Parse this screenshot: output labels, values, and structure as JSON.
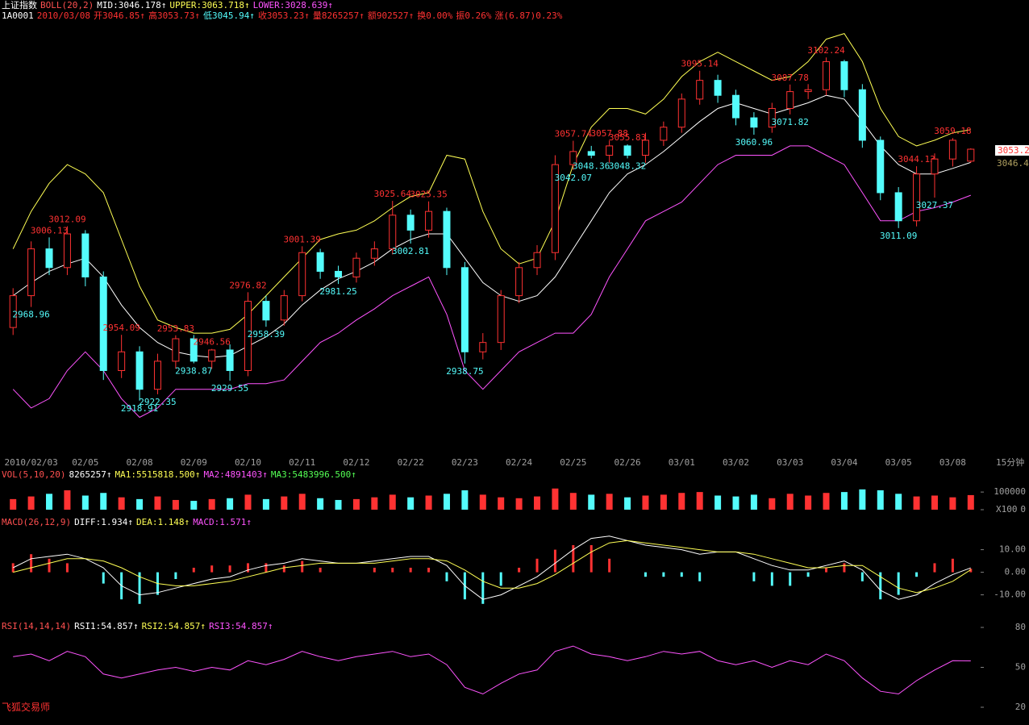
{
  "header": {
    "line1": [
      {
        "text": "上证指数",
        "color": "#ffffff"
      },
      {
        "text": "BOLL(20,2)",
        "color": "#ff5050"
      },
      {
        "text": "MID:3046.178↑",
        "color": "#ffffff"
      },
      {
        "text": "UPPER:3063.718↑",
        "color": "#ffff54"
      },
      {
        "text": "LOWER:3028.639↑",
        "color": "#ff54ff"
      }
    ],
    "line2": [
      {
        "text": "1A0001",
        "color": "#ffffff"
      },
      {
        "text": "2010/03/08",
        "color": "#ff3232"
      },
      {
        "text": "开3046.85↑",
        "color": "#ff3232"
      },
      {
        "text": "高3053.73↑",
        "color": "#ff3232"
      },
      {
        "text": "低3045.94↑",
        "color": "#54fcfc"
      },
      {
        "text": "收3053.23↑",
        "color": "#ff3232"
      },
      {
        "text": "量8265257↑",
        "color": "#ff3232"
      },
      {
        "text": "额902527↑",
        "color": "#ff3232"
      },
      {
        "text": "换0.00%",
        "color": "#ff3232"
      },
      {
        "text": "振0.26%",
        "color": "#ff3232"
      },
      {
        "text": "涨(6.87)0.23%",
        "color": "#ff3232"
      }
    ]
  },
  "chart_data": [
    {
      "type": "candlestick",
      "period": "15分钟",
      "last_price": "3053.2",
      "mid_price": "3046.4",
      "up_color": "#ff3232",
      "down_color": "#54fcfc",
      "ylim": [
        2893,
        3120
      ],
      "categories": [
        null,
        "2010/02/03",
        null,
        null,
        "02/05",
        null,
        null,
        "02/08",
        null,
        null,
        "02/09",
        null,
        null,
        "02/10",
        null,
        null,
        "02/11",
        null,
        null,
        "02/12",
        null,
        null,
        "02/22",
        null,
        null,
        "02/23",
        null,
        null,
        "02/24",
        null,
        null,
        "02/25",
        null,
        null,
        "02/26",
        null,
        null,
        "03/01",
        null,
        null,
        "03/02",
        null,
        null,
        "03/03",
        null,
        null,
        "03/04",
        null,
        null,
        "03/05",
        null,
        null,
        "03/08",
        null
      ],
      "open": [
        2958,
        2975,
        3000,
        2990,
        3008,
        2985,
        2935,
        2945,
        2925,
        2940,
        2952,
        2940,
        2946,
        2935,
        2972,
        2962,
        2975,
        2998,
        2988,
        2985,
        2995,
        3000,
        3018,
        3010,
        3020,
        2990,
        2945,
        2950,
        2975,
        2990,
        2998,
        3045,
        3052,
        3050,
        3055,
        3050,
        3058,
        3065,
        3080,
        3090,
        3082,
        3070,
        3065,
        3075,
        3084,
        3085,
        3100,
        3085,
        3058,
        3030,
        3015,
        3040,
        3048,
        3046.85
      ],
      "high": [
        2979,
        3004,
        3006.13,
        3012.09,
        3010,
        2988,
        2954.09,
        2948,
        2944,
        2953.83,
        2954,
        2946.56,
        2949,
        2976.82,
        2975,
        2978,
        3001.39,
        3000,
        2991,
        2998,
        3004,
        3025.64,
        3021,
        3025.35,
        3022,
        2993,
        2955,
        2978,
        2993,
        3002,
        3050,
        3057.74,
        3055,
        3057.88,
        3055.83,
        3062,
        3068,
        3083,
        3095.14,
        3093,
        3085,
        3073,
        3078,
        3087.78,
        3088,
        3102.24,
        3101,
        3088,
        3060,
        3033,
        3044.13,
        3051,
        3059.18,
        3053.73
      ],
      "low": [
        2954,
        2968.96,
        2986,
        2986,
        2980,
        2930,
        2931,
        2918.91,
        2922.35,
        2936,
        2938.87,
        2936,
        2929.55,
        2932,
        2958.39,
        2959,
        2972,
        2984,
        2981.25,
        2982,
        2991,
        2997,
        3002.81,
        3006,
        2986,
        2938.75,
        2941,
        2946,
        2971,
        2986,
        2994,
        3042.07,
        3048.36,
        3046,
        3048.32,
        3046,
        3055,
        3062,
        3077,
        3078,
        3066,
        3060.96,
        3062,
        3071.82,
        3080,
        3082,
        3081,
        3054,
        3026,
        3011.09,
        3012,
        3027.37,
        3044,
        3045.94
      ],
      "close": [
        2975,
        3000,
        2990,
        3008,
        2985,
        2935,
        2945,
        2925,
        2940,
        2952,
        2940,
        2946,
        2935,
        2972,
        2962,
        2975,
        2998,
        2988,
        2985,
        2995,
        3000,
        3018,
        3010,
        3020,
        2990,
        2945,
        2950,
        2975,
        2990,
        2998,
        3045,
        3052,
        3050,
        3055,
        3050,
        3058,
        3065,
        3080,
        3090,
        3082,
        3070,
        3065,
        3075,
        3084,
        3085,
        3100,
        3085,
        3058,
        3030,
        3015,
        3040,
        3048,
        3058,
        3053.23
      ],
      "high_labels": [
        null,
        null,
        "3006.13",
        "3012.09",
        null,
        null,
        "2954.09",
        null,
        null,
        "2953.83",
        null,
        "2946.56",
        null,
        "2976.82",
        null,
        null,
        "3001.39",
        null,
        null,
        null,
        null,
        "3025.64",
        null,
        "3025.35",
        null,
        null,
        null,
        null,
        null,
        null,
        null,
        "3057.74",
        null,
        "3057.88",
        "3055.83",
        null,
        null,
        null,
        "3095.14",
        null,
        null,
        null,
        null,
        "3087.78",
        null,
        "3102.24",
        null,
        null,
        null,
        null,
        "3044.13",
        null,
        "3059.18",
        null
      ],
      "low_labels": [
        null,
        "2968.96",
        null,
        null,
        null,
        null,
        null,
        "2918.91",
        "2922.35",
        null,
        "2938.87",
        null,
        "2929.55",
        null,
        "2958.39",
        null,
        null,
        null,
        "2981.25",
        null,
        null,
        null,
        "3002.81",
        null,
        null,
        "2938.75",
        null,
        null,
        null,
        null,
        null,
        "3042.07",
        "3048.36",
        null,
        "3048.32",
        null,
        null,
        null,
        null,
        null,
        null,
        "3060.96",
        null,
        "3071.82",
        null,
        null,
        null,
        null,
        null,
        "3011.09",
        null,
        "3027.37",
        null,
        null
      ],
      "series": [
        {
          "color": "#ffffff",
          "values": [
            2975,
            2982,
            2988,
            2992,
            2995,
            2985,
            2970,
            2958,
            2950,
            2945,
            2943,
            2942,
            2943,
            2948,
            2953,
            2960,
            2970,
            2978,
            2984,
            2988,
            2993,
            3000,
            3005,
            3008,
            3008,
            2995,
            2982,
            2975,
            2972,
            2975,
            2985,
            3000,
            3015,
            3030,
            3040,
            3045,
            3052,
            3060,
            3068,
            3075,
            3078,
            3075,
            3072,
            3075,
            3078,
            3082,
            3080,
            3068,
            3055,
            3045,
            3040,
            3040,
            3043,
            3046.178
          ]
        },
        {
          "color": "#ffff54",
          "values": [
            3000,
            3020,
            3035,
            3045,
            3040,
            3030,
            3005,
            2980,
            2962,
            2958,
            2955,
            2955,
            2957,
            2965,
            2975,
            2985,
            2995,
            3005,
            3008,
            3010,
            3015,
            3022,
            3028,
            3030,
            3050,
            3048,
            3020,
            3000,
            2992,
            2995,
            3015,
            3045,
            3065,
            3075,
            3075,
            3072,
            3080,
            3092,
            3100,
            3105,
            3100,
            3095,
            3090,
            3092,
            3100,
            3112,
            3115,
            3100,
            3075,
            3060,
            3055,
            3058,
            3062,
            3063.718
          ]
        },
        {
          "color": "#ff54ff",
          "values": [
            2925,
            2915,
            2920,
            2935,
            2945,
            2935,
            2920,
            2910,
            2915,
            2925,
            2925,
            2925,
            2925,
            2928,
            2928,
            2930,
            2940,
            2950,
            2955,
            2962,
            2968,
            2975,
            2980,
            2985,
            2965,
            2935,
            2925,
            2935,
            2945,
            2950,
            2955,
            2955,
            2965,
            2985,
            3000,
            3015,
            3020,
            3025,
            3035,
            3045,
            3050,
            3050,
            3050,
            3055,
            3055,
            3050,
            3045,
            3030,
            3015,
            3015,
            3020,
            3022,
            3025,
            3028.639
          ]
        }
      ]
    },
    {
      "type": "bar",
      "unit": "X100",
      "ylim": [
        0,
        160000
      ],
      "yticks": [
        0,
        100000
      ],
      "header": [
        {
          "text": "VOL(5,10,20)",
          "color": "#ff5050"
        },
        {
          "text": "8265257↑",
          "color": "#ffffff"
        },
        {
          "text": "MA1:5515818.500↑",
          "color": "#ffff54"
        },
        {
          "text": "MA2:4891403↑",
          "color": "#ff54ff"
        },
        {
          "text": "MA3:5483996.500↑",
          "color": "#54ff54"
        }
      ],
      "values": [
        60000,
        75000,
        90000,
        110000,
        80000,
        95000,
        70000,
        60000,
        75000,
        55000,
        50000,
        60000,
        65000,
        85000,
        60000,
        75000,
        90000,
        65000,
        55000,
        60000,
        70000,
        85000,
        70000,
        80000,
        90000,
        110000,
        85000,
        70000,
        65000,
        75000,
        120000,
        95000,
        85000,
        90000,
        70000,
        80000,
        85000,
        95000,
        100000,
        80000,
        75000,
        85000,
        65000,
        90000,
        80000,
        95000,
        100000,
        115000,
        110000,
        90000,
        75000,
        80000,
        70000,
        82652.57
      ]
    },
    {
      "type": "macd",
      "ylim": [
        -18,
        17
      ],
      "yticks": [
        {
          "value": 10,
          "label": "10.00"
        },
        {
          "value": 0,
          "label": "0.00"
        },
        {
          "value": -10,
          "label": "-10.00"
        }
      ],
      "header": [
        {
          "text": "MACD(26,12,9)",
          "color": "#ff5050"
        },
        {
          "text": "DIFF:1.934↑",
          "color": "#ffffff"
        },
        {
          "text": "DEA:1.148↑",
          "color": "#ffff54"
        },
        {
          "text": "MACD:1.571↑",
          "color": "#ff54ff"
        }
      ],
      "histogram": [
        4,
        8,
        6,
        4,
        0,
        -5,
        -12,
        -14,
        -10,
        -3,
        2,
        3,
        3,
        4,
        4,
        3,
        5,
        2,
        0,
        0,
        2,
        2,
        2,
        2,
        -4,
        -12,
        -14,
        -6,
        2,
        6,
        10,
        12,
        12,
        6,
        0,
        -2,
        -2,
        -2,
        -4,
        0,
        0,
        -4,
        -6,
        -6,
        -2,
        2,
        4,
        -4,
        -12,
        -10,
        -2,
        4,
        6,
        1.571
      ],
      "series": [
        {
          "color": "#ffffff",
          "values": [
            2,
            6,
            7,
            8,
            6,
            2,
            -6,
            -10,
            -9,
            -7,
            -5,
            -3,
            -2,
            1,
            3,
            4,
            6,
            5,
            4,
            4,
            5,
            6,
            7,
            7,
            3,
            -6,
            -12,
            -10,
            -6,
            -2,
            4,
            10,
            15,
            16,
            14,
            12,
            11,
            10,
            8,
            9,
            9,
            6,
            3,
            1,
            1,
            3,
            5,
            1,
            -8,
            -12,
            -10,
            -5,
            -1,
            1.934
          ]
        },
        {
          "color": "#ffff54",
          "values": [
            0,
            2,
            4,
            6,
            6,
            5,
            2,
            -2,
            -5,
            -6,
            -6,
            -5,
            -4,
            -2,
            0,
            2,
            3,
            4,
            4,
            4,
            4,
            5,
            6,
            6,
            5,
            1,
            -4,
            -7,
            -7,
            -5,
            -1,
            4,
            9,
            13,
            14,
            13,
            12,
            11,
            10,
            9,
            9,
            8,
            6,
            4,
            2,
            2,
            3,
            3,
            -2,
            -7,
            -9,
            -7,
            -4,
            1.148
          ]
        }
      ]
    },
    {
      "type": "line",
      "ylim": [
        20,
        80
      ],
      "yticks": [
        80,
        50,
        20
      ],
      "header": [
        {
          "text": "RSI(14,14,14)",
          "color": "#ff5050"
        },
        {
          "text": "RSI1:54.857↑",
          "color": "#ffffff"
        },
        {
          "text": "RSI2:54.857↑",
          "color": "#ffff54"
        },
        {
          "text": "RSI3:54.857↑",
          "color": "#ff54ff"
        }
      ],
      "series": [
        {
          "color": "#ff54ff",
          "values": [
            58,
            60,
            55,
            62,
            58,
            45,
            42,
            45,
            48,
            50,
            47,
            50,
            48,
            55,
            52,
            56,
            62,
            58,
            55,
            58,
            60,
            62,
            58,
            60,
            52,
            35,
            30,
            38,
            45,
            48,
            62,
            66,
            60,
            58,
            55,
            58,
            62,
            60,
            62,
            55,
            52,
            55,
            50,
            55,
            52,
            60,
            55,
            42,
            32,
            30,
            40,
            48,
            55,
            54.857
          ]
        }
      ]
    }
  ],
  "brand": "飞狐交易师"
}
